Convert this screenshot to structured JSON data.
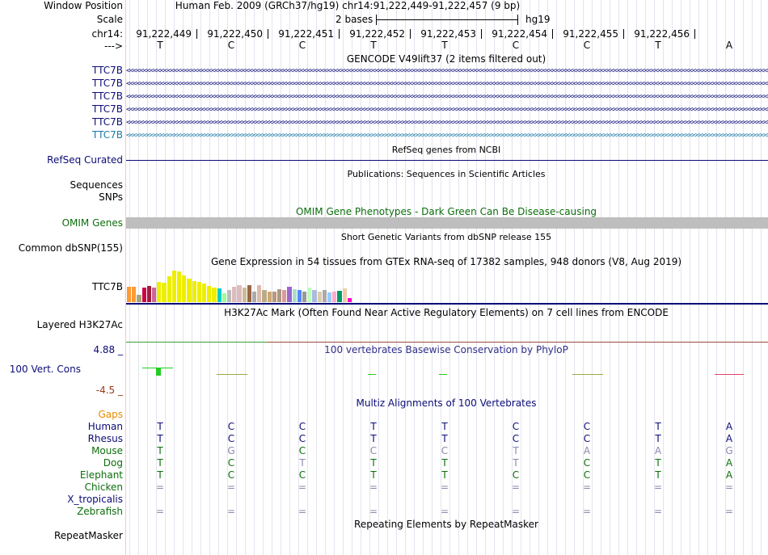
{
  "header": {
    "window_position_label": "Window Position",
    "window_position": "Human Feb. 2009 (GRCh37/hg19)   chr14:91,222,449-91,222,457 (9 bp)",
    "scale_label": "Scale",
    "scale_text": "2 bases",
    "scale_assembly": "hg19",
    "chrom_label": "chr14:",
    "strand_label": "--->",
    "coordinates": [
      "91,222,449",
      "91,222,450",
      "91,222,451",
      "91,222,452",
      "91,222,453",
      "91,222,454",
      "91,222,455",
      "91,222,456"
    ],
    "bases": [
      "T",
      "C",
      "C",
      "T",
      "T",
      "C",
      "C",
      "T",
      "A"
    ]
  },
  "gencode": {
    "title": "GENCODE V49lift37 (2 items filtered out)",
    "items": [
      {
        "label": "TTC7B",
        "color": "#0c0c78"
      },
      {
        "label": "TTC7B",
        "color": "#0c0c78"
      },
      {
        "label": "TTC7B",
        "color": "#0c0c78"
      },
      {
        "label": "TTC7B",
        "color": "#0c0c78"
      },
      {
        "label": "TTC7B",
        "color": "#0c0c78"
      },
      {
        "label": "TTC7B",
        "color": "#1a7aa6"
      }
    ]
  },
  "refseq": {
    "title": "RefSeq genes from NCBI",
    "label": "RefSeq Curated"
  },
  "publications": {
    "title": "Publications: Sequences in Scientific Articles",
    "label_sequences": "Sequences",
    "label_snps": "SNPs"
  },
  "omim": {
    "title": "OMIM Gene Phenotypes - Dark Green Can Be Disease-causing",
    "label": "OMIM Genes"
  },
  "dbsnp": {
    "title": "Short Genetic Variants from dbSNP release 155",
    "label": "Common dbSNP(155)"
  },
  "gtex": {
    "title": "Gene Expression in 54 tissues from GTEx RNA-seq of 17382 samples, 948 donors (V8, Aug 2019)",
    "label": "TTC7B",
    "bars": [
      {
        "h": 0.45,
        "c": "#ff9933"
      },
      {
        "h": 0.45,
        "c": "#ff9933"
      },
      {
        "h": 0.22,
        "c": "#a5a575"
      },
      {
        "h": 0.43,
        "c": "#cc0044"
      },
      {
        "h": 0.48,
        "c": "#a01e3c"
      },
      {
        "h": 0.44,
        "c": "#cc6699"
      },
      {
        "h": 0.6,
        "c": "#eeee00"
      },
      {
        "h": 0.56,
        "c": "#eeee00"
      },
      {
        "h": 0.76,
        "c": "#eeee00"
      },
      {
        "h": 0.93,
        "c": "#eeee00"
      },
      {
        "h": 0.9,
        "c": "#eeee00"
      },
      {
        "h": 0.78,
        "c": "#eeee00"
      },
      {
        "h": 0.68,
        "c": "#eeee00"
      },
      {
        "h": 0.63,
        "c": "#eeee00"
      },
      {
        "h": 0.6,
        "c": "#eeee00"
      },
      {
        "h": 0.55,
        "c": "#eeee00"
      },
      {
        "h": 0.48,
        "c": "#eeee00"
      },
      {
        "h": 0.43,
        "c": "#eeee00"
      },
      {
        "h": 0.4,
        "c": "#00cccc"
      },
      {
        "h": 0.25,
        "c": "#99ff99"
      },
      {
        "h": 0.35,
        "c": "#bbbbbb"
      },
      {
        "h": 0.46,
        "c": "#ddbbbb"
      },
      {
        "h": 0.5,
        "c": "#ddbbbb"
      },
      {
        "h": 0.42,
        "c": "#ccbb99"
      },
      {
        "h": 0.51,
        "c": "#996644"
      },
      {
        "h": 0.3,
        "c": "#aaaaaa"
      },
      {
        "h": 0.5,
        "c": "#ddbbaa"
      },
      {
        "h": 0.36,
        "c": "#bbaa88"
      },
      {
        "h": 0.3,
        "c": "#ccaa77"
      },
      {
        "h": 0.32,
        "c": "#bb9977"
      },
      {
        "h": 0.38,
        "c": "#aa9988"
      },
      {
        "h": 0.35,
        "c": "#dd9999"
      },
      {
        "h": 0.45,
        "c": "#9966cc"
      },
      {
        "h": 0.38,
        "c": "#aaddcc"
      },
      {
        "h": 0.36,
        "c": "#5588ff"
      },
      {
        "h": 0.3,
        "c": "#999999"
      },
      {
        "h": 0.42,
        "c": "#bbffbb"
      },
      {
        "h": 0.36,
        "c": "#aabbdd"
      },
      {
        "h": 0.3,
        "c": "#ddccaa"
      },
      {
        "h": 0.35,
        "c": "#aaaaaa"
      },
      {
        "h": 0.28,
        "c": "#99ccff"
      },
      {
        "h": 0.32,
        "c": "#ffaacc"
      },
      {
        "h": 0.34,
        "c": "#009966"
      },
      {
        "h": 0.4,
        "c": "#eeccaa"
      },
      {
        "h": 0.12,
        "c": "#ff00cc"
      }
    ]
  },
  "h3k27ac": {
    "title": "H3K27Ac Mark (Often Found Near Active Regulatory Elements) on 7 cell lines from ENCODE",
    "label": "Layered H3K27Ac"
  },
  "phylop": {
    "title": "100 vertebrates Basewise Conservation by PhyloP",
    "label": "100 Vert. Cons",
    "max_label": "4.88 _",
    "min_label": "-4.5 _"
  },
  "multiz": {
    "title": "Multiz Alignments of 100 Vertebrates",
    "gaps_label": "Gaps",
    "species": [
      {
        "name": "Human",
        "color": "#0c0c78",
        "bases": [
          "T",
          "C",
          "C",
          "T",
          "T",
          "C",
          "C",
          "T",
          "A"
        ],
        "shade": [
          0,
          0,
          0,
          0,
          0,
          0,
          0,
          0,
          0
        ]
      },
      {
        "name": "Rhesus",
        "color": "#0c0c78",
        "bases": [
          "T",
          "C",
          "C",
          "T",
          "T",
          "C",
          "C",
          "T",
          "A"
        ],
        "shade": [
          0,
          0,
          0,
          0,
          0,
          0,
          0,
          0,
          0
        ]
      },
      {
        "name": "Mouse",
        "color": "#0c6e0c",
        "bases": [
          "T",
          "G",
          "C",
          "C",
          "C",
          "T",
          "A",
          "A",
          "G"
        ],
        "shade": [
          0,
          1,
          0,
          1,
          1,
          1,
          1,
          1,
          1
        ]
      },
      {
        "name": "Dog",
        "color": "#0c6e0c",
        "bases": [
          "T",
          "C",
          "T",
          "T",
          "T",
          "T",
          "C",
          "T",
          "A"
        ],
        "shade": [
          0,
          0,
          1,
          0,
          0,
          1,
          0,
          0,
          0
        ]
      },
      {
        "name": "Elephant",
        "color": "#0c6e0c",
        "bases": [
          "T",
          "C",
          "C",
          "T",
          "T",
          "C",
          "C",
          "T",
          "A"
        ],
        "shade": [
          0,
          0,
          0,
          0,
          0,
          0,
          0,
          0,
          0
        ]
      },
      {
        "name": "Chicken",
        "color": "#0c6e0c",
        "bases": [
          "=",
          "=",
          "=",
          "=",
          "=",
          "=",
          "=",
          "=",
          "="
        ],
        "shade": [
          1,
          1,
          1,
          1,
          1,
          1,
          1,
          1,
          1
        ]
      },
      {
        "name": "X_tropicalis",
        "color": "#0c0c78",
        "bases": [
          "",
          "",
          "",
          "",
          "",
          "",
          "",
          "",
          ""
        ],
        "shade": [
          0,
          0,
          0,
          0,
          0,
          0,
          0,
          0,
          0
        ]
      },
      {
        "name": "Zebrafish",
        "color": "#0c6e0c",
        "bases": [
          "=",
          "=",
          "=",
          "=",
          "=",
          "=",
          "=",
          "=",
          "="
        ],
        "shade": [
          1,
          1,
          1,
          1,
          1,
          1,
          1,
          1,
          1
        ]
      }
    ]
  },
  "repeatmasker": {
    "title": "Repeating Elements by RepeatMasker",
    "label": "RepeatMasker"
  }
}
